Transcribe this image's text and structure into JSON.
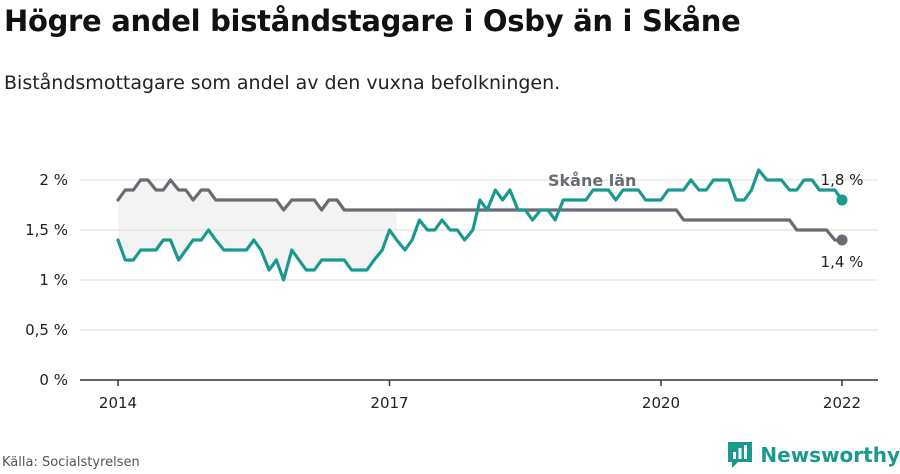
{
  "title": "Högre andel biståndstagare i Osby än i Skåne",
  "subtitle": "Biståndsmottagare som andel av den vuxna befolkningen.",
  "source": "Källa: Socialstyrelsen",
  "brand": {
    "name": "Newsworthy",
    "icon": "newsworthy-logo-icon",
    "color": "#1a9a8f"
  },
  "chart_data": {
    "type": "line",
    "xlim": [
      2014.0,
      2022.0
    ],
    "ylim": [
      0,
      2.2
    ],
    "yticks": [
      {
        "value": 0,
        "label": "0 %"
      },
      {
        "value": 0.5,
        "label": "0,5 %"
      },
      {
        "value": 1,
        "label": "1 %"
      },
      {
        "value": 1.5,
        "label": "1,5 %"
      },
      {
        "value": 2,
        "label": "2 %"
      }
    ],
    "xticks": [
      {
        "value": 2014,
        "label": "2014"
      },
      {
        "value": 2017,
        "label": "2017"
      },
      {
        "value": 2020,
        "label": "2020"
      },
      {
        "value": 2022,
        "label": "2022"
      }
    ],
    "grid": true,
    "series": [
      {
        "name": "Skåne län",
        "color": "#6b6b73",
        "end_label": "1,4 %",
        "points": [
          [
            2014.0,
            1.8
          ],
          [
            2014.08,
            1.9
          ],
          [
            2014.17,
            1.9
          ],
          [
            2014.25,
            2.0
          ],
          [
            2014.33,
            2.0
          ],
          [
            2014.42,
            1.9
          ],
          [
            2014.5,
            1.9
          ],
          [
            2014.58,
            2.0
          ],
          [
            2014.67,
            1.9
          ],
          [
            2014.75,
            1.9
          ],
          [
            2014.83,
            1.8
          ],
          [
            2014.92,
            1.9
          ],
          [
            2015.0,
            1.9
          ],
          [
            2015.08,
            1.8
          ],
          [
            2015.17,
            1.8
          ],
          [
            2015.25,
            1.8
          ],
          [
            2015.33,
            1.8
          ],
          [
            2015.42,
            1.8
          ],
          [
            2015.5,
            1.8
          ],
          [
            2015.58,
            1.8
          ],
          [
            2015.67,
            1.8
          ],
          [
            2015.75,
            1.8
          ],
          [
            2015.83,
            1.7
          ],
          [
            2015.92,
            1.8
          ],
          [
            2016.0,
            1.8
          ],
          [
            2016.08,
            1.8
          ],
          [
            2016.17,
            1.8
          ],
          [
            2016.25,
            1.7
          ],
          [
            2016.33,
            1.8
          ],
          [
            2016.42,
            1.8
          ],
          [
            2016.5,
            1.7
          ],
          [
            2016.58,
            1.7
          ],
          [
            2016.67,
            1.7
          ],
          [
            2016.75,
            1.7
          ],
          [
            2016.83,
            1.7
          ],
          [
            2016.92,
            1.7
          ],
          [
            2017.0,
            1.7
          ],
          [
            2017.08,
            1.7
          ],
          [
            2017.17,
            1.7
          ],
          [
            2017.25,
            1.7
          ],
          [
            2017.33,
            1.7
          ],
          [
            2017.42,
            1.7
          ],
          [
            2017.5,
            1.7
          ],
          [
            2017.58,
            1.7
          ],
          [
            2017.67,
            1.7
          ],
          [
            2017.75,
            1.7
          ],
          [
            2017.83,
            1.7
          ],
          [
            2017.92,
            1.7
          ],
          [
            2018.0,
            1.7
          ],
          [
            2018.08,
            1.7
          ],
          [
            2018.17,
            1.7
          ],
          [
            2018.25,
            1.7
          ],
          [
            2018.33,
            1.7
          ],
          [
            2018.42,
            1.7
          ],
          [
            2018.5,
            1.7
          ],
          [
            2018.58,
            1.7
          ],
          [
            2018.67,
            1.7
          ],
          [
            2018.75,
            1.7
          ],
          [
            2018.83,
            1.7
          ],
          [
            2018.92,
            1.7
          ],
          [
            2019.0,
            1.7
          ],
          [
            2019.08,
            1.7
          ],
          [
            2019.17,
            1.7
          ],
          [
            2019.25,
            1.7
          ],
          [
            2019.33,
            1.7
          ],
          [
            2019.42,
            1.7
          ],
          [
            2019.5,
            1.7
          ],
          [
            2019.58,
            1.7
          ],
          [
            2019.67,
            1.7
          ],
          [
            2019.75,
            1.7
          ],
          [
            2019.83,
            1.7
          ],
          [
            2019.92,
            1.7
          ],
          [
            2020.0,
            1.7
          ],
          [
            2020.08,
            1.7
          ],
          [
            2020.17,
            1.7
          ],
          [
            2020.25,
            1.6
          ],
          [
            2020.33,
            1.6
          ],
          [
            2020.42,
            1.6
          ],
          [
            2020.5,
            1.6
          ],
          [
            2020.58,
            1.6
          ],
          [
            2020.67,
            1.6
          ],
          [
            2020.75,
            1.6
          ],
          [
            2020.83,
            1.6
          ],
          [
            2020.92,
            1.6
          ],
          [
            2021.0,
            1.6
          ],
          [
            2021.08,
            1.6
          ],
          [
            2021.17,
            1.6
          ],
          [
            2021.25,
            1.6
          ],
          [
            2021.33,
            1.6
          ],
          [
            2021.42,
            1.6
          ],
          [
            2021.5,
            1.5
          ],
          [
            2021.58,
            1.5
          ],
          [
            2021.67,
            1.5
          ],
          [
            2021.75,
            1.5
          ],
          [
            2021.83,
            1.5
          ],
          [
            2021.92,
            1.4
          ],
          [
            2022.0,
            1.4
          ]
        ]
      },
      {
        "name": "Osby",
        "color": "#1a9a8f",
        "end_label": "1,8 %",
        "points": [
          [
            2014.0,
            1.4
          ],
          [
            2014.08,
            1.2
          ],
          [
            2014.17,
            1.2
          ],
          [
            2014.25,
            1.3
          ],
          [
            2014.33,
            1.3
          ],
          [
            2014.42,
            1.3
          ],
          [
            2014.5,
            1.4
          ],
          [
            2014.58,
            1.4
          ],
          [
            2014.67,
            1.2
          ],
          [
            2014.75,
            1.3
          ],
          [
            2014.83,
            1.4
          ],
          [
            2014.92,
            1.4
          ],
          [
            2015.0,
            1.5
          ],
          [
            2015.08,
            1.4
          ],
          [
            2015.17,
            1.3
          ],
          [
            2015.25,
            1.3
          ],
          [
            2015.33,
            1.3
          ],
          [
            2015.42,
            1.3
          ],
          [
            2015.5,
            1.4
          ],
          [
            2015.58,
            1.3
          ],
          [
            2015.67,
            1.1
          ],
          [
            2015.75,
            1.2
          ],
          [
            2015.83,
            1.0
          ],
          [
            2015.92,
            1.3
          ],
          [
            2016.0,
            1.2
          ],
          [
            2016.08,
            1.1
          ],
          [
            2016.17,
            1.1
          ],
          [
            2016.25,
            1.2
          ],
          [
            2016.33,
            1.2
          ],
          [
            2016.42,
            1.2
          ],
          [
            2016.5,
            1.2
          ],
          [
            2016.58,
            1.1
          ],
          [
            2016.67,
            1.1
          ],
          [
            2016.75,
            1.1
          ],
          [
            2016.83,
            1.2
          ],
          [
            2016.92,
            1.3
          ],
          [
            2017.0,
            1.5
          ],
          [
            2017.08,
            1.4
          ],
          [
            2017.17,
            1.3
          ],
          [
            2017.25,
            1.4
          ],
          [
            2017.33,
            1.6
          ],
          [
            2017.42,
            1.5
          ],
          [
            2017.5,
            1.5
          ],
          [
            2017.58,
            1.6
          ],
          [
            2017.67,
            1.5
          ],
          [
            2017.75,
            1.5
          ],
          [
            2017.83,
            1.4
          ],
          [
            2017.92,
            1.5
          ],
          [
            2018.0,
            1.8
          ],
          [
            2018.08,
            1.7
          ],
          [
            2018.17,
            1.9
          ],
          [
            2018.25,
            1.8
          ],
          [
            2018.33,
            1.9
          ],
          [
            2018.42,
            1.7
          ],
          [
            2018.5,
            1.7
          ],
          [
            2018.58,
            1.6
          ],
          [
            2018.67,
            1.7
          ],
          [
            2018.75,
            1.7
          ],
          [
            2018.83,
            1.6
          ],
          [
            2018.92,
            1.8
          ],
          [
            2019.0,
            1.8
          ],
          [
            2019.08,
            1.8
          ],
          [
            2019.17,
            1.8
          ],
          [
            2019.25,
            1.9
          ],
          [
            2019.33,
            1.9
          ],
          [
            2019.42,
            1.9
          ],
          [
            2019.5,
            1.8
          ],
          [
            2019.58,
            1.9
          ],
          [
            2019.67,
            1.9
          ],
          [
            2019.75,
            1.9
          ],
          [
            2019.83,
            1.8
          ],
          [
            2019.92,
            1.8
          ],
          [
            2020.0,
            1.8
          ],
          [
            2020.08,
            1.9
          ],
          [
            2020.17,
            1.9
          ],
          [
            2020.25,
            1.9
          ],
          [
            2020.33,
            2.0
          ],
          [
            2020.42,
            1.9
          ],
          [
            2020.5,
            1.9
          ],
          [
            2020.58,
            2.0
          ],
          [
            2020.67,
            2.0
          ],
          [
            2020.75,
            2.0
          ],
          [
            2020.83,
            1.8
          ],
          [
            2020.92,
            1.8
          ],
          [
            2021.0,
            1.9
          ],
          [
            2021.08,
            2.1
          ],
          [
            2021.17,
            2.0
          ],
          [
            2021.25,
            2.0
          ],
          [
            2021.33,
            2.0
          ],
          [
            2021.42,
            1.9
          ],
          [
            2021.5,
            1.9
          ],
          [
            2021.58,
            2.0
          ],
          [
            2021.67,
            2.0
          ],
          [
            2021.75,
            1.9
          ],
          [
            2021.83,
            1.9
          ],
          [
            2021.92,
            1.9
          ],
          [
            2022.0,
            1.8
          ]
        ]
      }
    ],
    "series_label": {
      "text": "Skåne län",
      "series": 0
    }
  }
}
